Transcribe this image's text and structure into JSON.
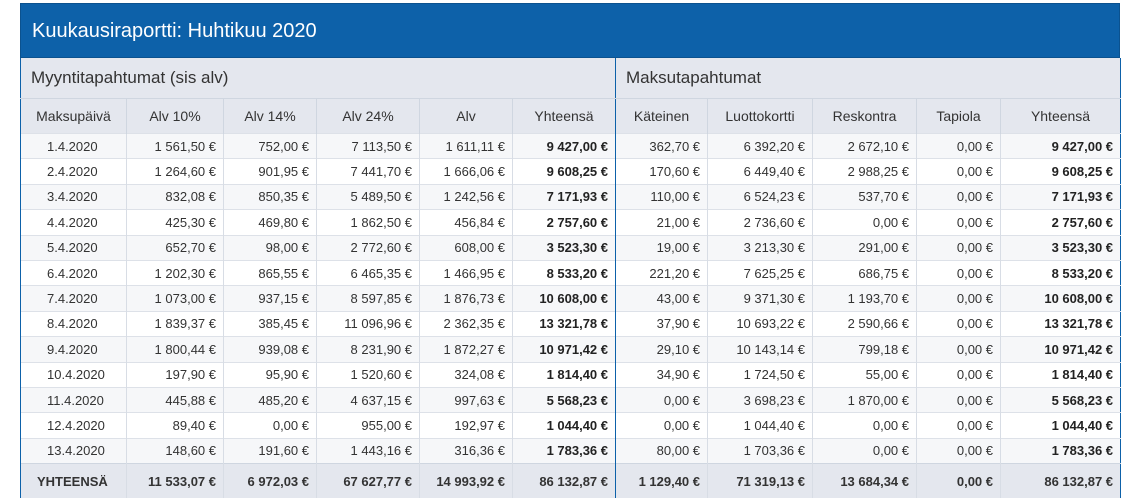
{
  "title": "Kuukausiraportti: Huhtikuu 2020",
  "groups": {
    "sales": "Myyntitapahtumat (sis alv)",
    "payments": "Maksutapahtumat"
  },
  "columns": [
    "Maksupäivä",
    "Alv 10%",
    "Alv 14%",
    "Alv 24%",
    "Alv",
    "Yhteensä",
    "Käteinen",
    "Luottokortti",
    "Reskontra",
    "Tapiola",
    "Yhteensä"
  ],
  "rows": [
    [
      "1.4.2020",
      "1 561,50 €",
      "752,00 €",
      "7 113,50 €",
      "1 611,11 €",
      "9 427,00 €",
      "362,70 €",
      "6 392,20 €",
      "2 672,10 €",
      "0,00 €",
      "9 427,00 €"
    ],
    [
      "2.4.2020",
      "1 264,60 €",
      "901,95 €",
      "7 441,70 €",
      "1 666,06 €",
      "9 608,25 €",
      "170,60 €",
      "6 449,40 €",
      "2 988,25 €",
      "0,00 €",
      "9 608,25 €"
    ],
    [
      "3.4.2020",
      "832,08 €",
      "850,35 €",
      "5 489,50 €",
      "1 242,56 €",
      "7 171,93 €",
      "110,00 €",
      "6 524,23 €",
      "537,70 €",
      "0,00 €",
      "7 171,93 €"
    ],
    [
      "4.4.2020",
      "425,30 €",
      "469,80 €",
      "1 862,50 €",
      "456,84 €",
      "2 757,60 €",
      "21,00 €",
      "2 736,60 €",
      "0,00 €",
      "0,00 €",
      "2 757,60 €"
    ],
    [
      "5.4.2020",
      "652,70 €",
      "98,00 €",
      "2 772,60 €",
      "608,00 €",
      "3 523,30 €",
      "19,00 €",
      "3 213,30 €",
      "291,00 €",
      "0,00 €",
      "3 523,30 €"
    ],
    [
      "6.4.2020",
      "1 202,30 €",
      "865,55 €",
      "6 465,35 €",
      "1 466,95 €",
      "8 533,20 €",
      "221,20 €",
      "7 625,25 €",
      "686,75 €",
      "0,00 €",
      "8 533,20 €"
    ],
    [
      "7.4.2020",
      "1 073,00 €",
      "937,15 €",
      "8 597,85 €",
      "1 876,73 €",
      "10 608,00 €",
      "43,00 €",
      "9 371,30 €",
      "1 193,70 €",
      "0,00 €",
      "10 608,00 €"
    ],
    [
      "8.4.2020",
      "1 839,37 €",
      "385,45 €",
      "11 096,96 €",
      "2 362,35 €",
      "13 321,78 €",
      "37,90 €",
      "10 693,22 €",
      "2 590,66 €",
      "0,00 €",
      "13 321,78 €"
    ],
    [
      "9.4.2020",
      "1 800,44 €",
      "939,08 €",
      "8 231,90 €",
      "1 872,27 €",
      "10 971,42 €",
      "29,10 €",
      "10 143,14 €",
      "799,18 €",
      "0,00 €",
      "10 971,42 €"
    ],
    [
      "10.4.2020",
      "197,90 €",
      "95,90 €",
      "1 520,60 €",
      "324,08 €",
      "1 814,40 €",
      "34,90 €",
      "1 724,50 €",
      "55,00 €",
      "0,00 €",
      "1 814,40 €"
    ],
    [
      "11.4.2020",
      "445,88 €",
      "485,20 €",
      "4 637,15 €",
      "997,63 €",
      "5 568,23 €",
      "0,00 €",
      "3 698,23 €",
      "1 870,00 €",
      "0,00 €",
      "5 568,23 €"
    ],
    [
      "12.4.2020",
      "89,40 €",
      "0,00 €",
      "955,00 €",
      "192,97 €",
      "1 044,40 €",
      "0,00 €",
      "1 044,40 €",
      "0,00 €",
      "0,00 €",
      "1 044,40 €"
    ],
    [
      "13.4.2020",
      "148,60 €",
      "191,60 €",
      "1 443,16 €",
      "316,36 €",
      "1 783,36 €",
      "80,00 €",
      "1 703,36 €",
      "0,00 €",
      "0,00 €",
      "1 783,36 €"
    ]
  ],
  "totals": [
    "YHTEENSÄ",
    "11 533,07 €",
    "6 972,03 €",
    "67 627,77 €",
    "14 993,92 €",
    "86 132,87 €",
    "1 129,40 €",
    "71 319,13 €",
    "13 684,34 €",
    "0,00 €",
    "86 132,87 €"
  ],
  "colors": {
    "title_bg": "#0d61a9",
    "header_bg": "#e4e7ee",
    "row_alt": "#f6f7f9"
  }
}
